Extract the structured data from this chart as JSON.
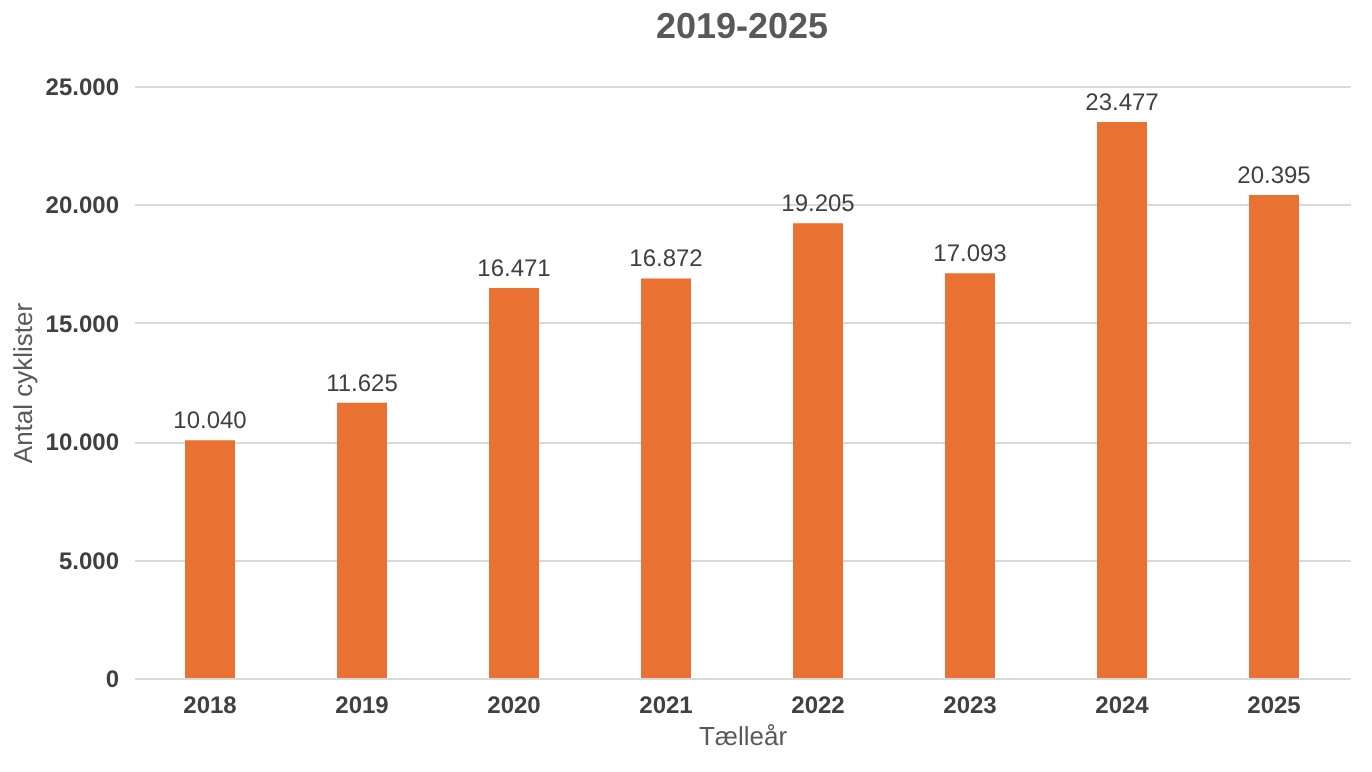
{
  "chart_data": {
    "type": "bar",
    "title": "2019-2025",
    "xlabel": "Tælleår",
    "ylabel": "Antal cyklister",
    "categories": [
      "2018",
      "2019",
      "2020",
      "2021",
      "2022",
      "2023",
      "2024",
      "2025"
    ],
    "values": [
      10040,
      11625,
      16471,
      16872,
      19205,
      17093,
      23477,
      20395
    ],
    "value_labels": [
      "10.040",
      "11.625",
      "16.471",
      "16.872",
      "19.205",
      "17.093",
      "23.477",
      "20.395"
    ],
    "color": "#e97132",
    "ylim": [
      0,
      25000
    ],
    "yticks": [
      {
        "value": 0,
        "label": "0"
      },
      {
        "value": 5000,
        "label": "5.000"
      },
      {
        "value": 10000,
        "label": "10.000"
      },
      {
        "value": 15000,
        "label": "15.000"
      },
      {
        "value": 20000,
        "label": "20.000"
      },
      {
        "value": 25000,
        "label": "25.000"
      }
    ],
    "grid": "y"
  }
}
